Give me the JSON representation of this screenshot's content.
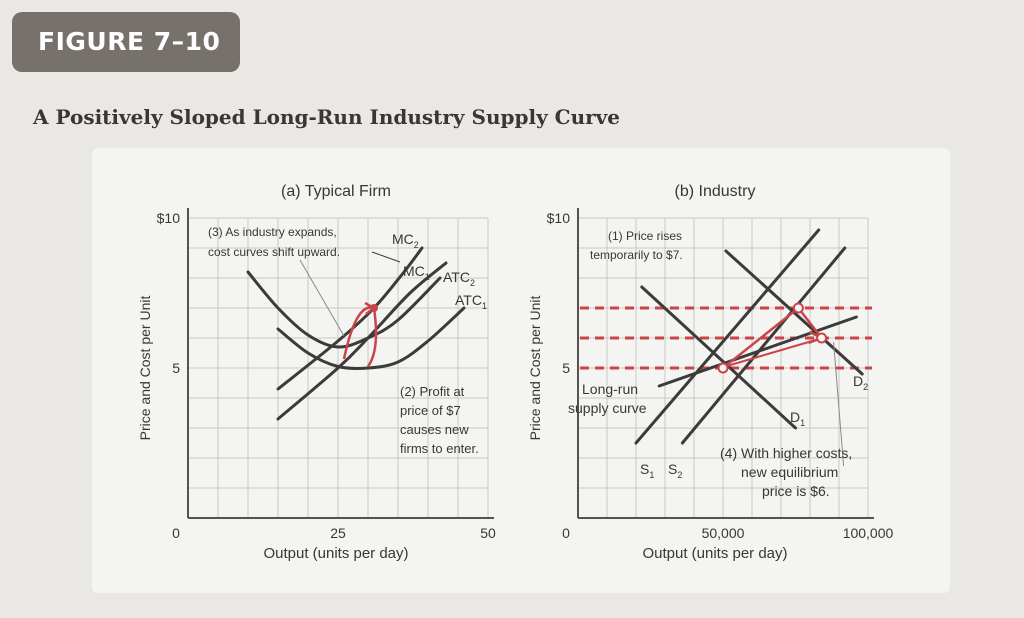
{
  "figure": {
    "badge": "FIGURE 7–10",
    "title": "A Positively Sloped Long-Run Industry Supply Curve"
  },
  "colors": {
    "curve": "#3c3b3a",
    "accent": "#c94549",
    "grid": "#c8c7c4",
    "axis": "#555350",
    "text": "#3a3632"
  },
  "chart_data": [
    {
      "type": "line",
      "title": "(a) Typical Firm",
      "xlabel": "Output (units per day)",
      "ylabel": "Price and Cost per Unit",
      "xlim": [
        0,
        50
      ],
      "ylim": [
        0,
        10
      ],
      "x_ticks": [
        {
          "value": 0,
          "label": "0"
        },
        {
          "value": 25,
          "label": "25"
        },
        {
          "value": 50,
          "label": "50"
        }
      ],
      "y_ticks": [
        {
          "value": 5,
          "label": "5"
        },
        {
          "value": 10,
          "label": "$10"
        }
      ],
      "grid": true,
      "series": [
        {
          "name": "MC1",
          "label": "MC₁",
          "points": [
            [
              15,
              3.3
            ],
            [
              25,
              5.0
            ],
            [
              30,
              6.0
            ],
            [
              37,
              7.5
            ],
            [
              43,
              8.5
            ]
          ]
        },
        {
          "name": "MC2",
          "label": "MC₂",
          "points": [
            [
              15,
              4.3
            ],
            [
              25,
              5.9
            ],
            [
              31,
              7.0
            ],
            [
              36,
              8.2
            ],
            [
              39,
              9.0
            ]
          ]
        },
        {
          "name": "ATC1",
          "label": "ATC₁",
          "points": [
            [
              15,
              6.3
            ],
            [
              20,
              5.5
            ],
            [
              25,
              5.05
            ],
            [
              30,
              5.0
            ],
            [
              35,
              5.2
            ],
            [
              40,
              5.9
            ],
            [
              46,
              7.0
            ]
          ]
        },
        {
          "name": "ATC2",
          "label": "ATC₂",
          "points": [
            [
              10,
              8.2
            ],
            [
              15,
              7.0
            ],
            [
              20,
              6.1
            ],
            [
              25,
              5.7
            ],
            [
              30,
              6.0
            ],
            [
              35,
              6.6
            ],
            [
              42,
              8.0
            ]
          ]
        }
      ],
      "highlight": {
        "old_quantity": 25,
        "profit_price": 7,
        "profit_quantity": 31
      },
      "annotations": [
        {
          "lines": [
            "(3) As industry expands,",
            "cost curves shift upward."
          ]
        },
        {
          "lines": [
            "(2) Profit at",
            "price of $7",
            "causes new",
            "firms to enter."
          ]
        }
      ]
    },
    {
      "type": "line",
      "title": "(b) Industry",
      "xlabel": "Output (units per day)",
      "ylabel": "Price and Cost per Unit",
      "xlim": [
        0,
        100000
      ],
      "ylim": [
        0,
        10
      ],
      "x_ticks": [
        {
          "value": 0,
          "label": "0"
        },
        {
          "value": 50000,
          "label": "50,000"
        },
        {
          "value": 100000,
          "label": "100,000"
        }
      ],
      "y_ticks": [
        {
          "value": 5,
          "label": "5"
        },
        {
          "value": 10,
          "label": "$10"
        }
      ],
      "grid": true,
      "series": [
        {
          "name": "D1",
          "label": "D₁",
          "points": [
            [
              22000,
              7.7
            ],
            [
              75000,
              3.0
            ]
          ]
        },
        {
          "name": "D2",
          "label": "D₂",
          "points": [
            [
              51000,
              8.9
            ],
            [
              98000,
              4.8
            ]
          ]
        },
        {
          "name": "S1",
          "label": "S₁",
          "points": [
            [
              20000,
              2.5
            ],
            [
              83000,
              9.6
            ]
          ]
        },
        {
          "name": "S2",
          "label": "S₂",
          "points": [
            [
              36000,
              2.5
            ],
            [
              92000,
              9.0
            ]
          ]
        },
        {
          "name": "LRS",
          "label": "Long-run supply curve",
          "points": [
            [
              28000,
              4.4
            ],
            [
              96000,
              6.7
            ]
          ]
        }
      ],
      "reference_lines": [
        {
          "name": "price-7",
          "y": 7
        },
        {
          "name": "price-6",
          "y": 6
        },
        {
          "name": "price-5",
          "y": 5
        }
      ],
      "equilibria": [
        {
          "name": "initial",
          "x": 50000,
          "y": 5
        },
        {
          "name": "temporary",
          "x": 76000,
          "y": 7
        },
        {
          "name": "new",
          "x": 84000,
          "y": 6
        }
      ],
      "annotations": [
        {
          "lines": [
            "(1) Price rises",
            "temporarily to $7."
          ]
        },
        {
          "lines": [
            "(4) With higher costs,",
            "new equilibrium",
            "price is $6."
          ]
        }
      ]
    }
  ]
}
